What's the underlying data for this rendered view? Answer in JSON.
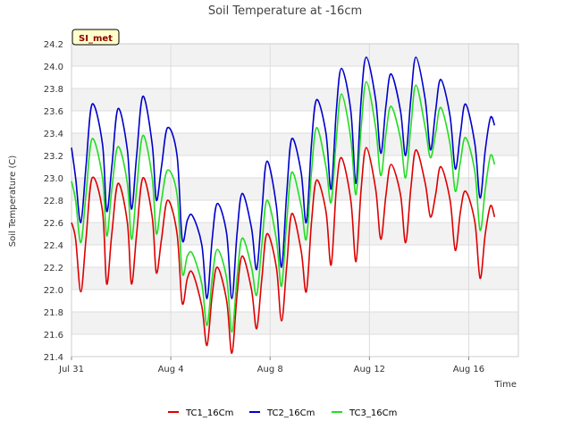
{
  "chart_data": {
    "type": "line",
    "title": "Soil Temperature at -16cm",
    "xlabel": "Time",
    "ylabel": "Soil Temperature (C)",
    "badge": "SI_met",
    "ylim": [
      21.4,
      24.2
    ],
    "xlim": [
      "2023-07-31",
      "2023-08-18"
    ],
    "x_ticks": [
      {
        "date": "2023-07-31",
        "label": "Jul 31"
      },
      {
        "date": "2023-08-04",
        "label": "Aug 4"
      },
      {
        "date": "2023-08-08",
        "label": "Aug 8"
      },
      {
        "date": "2023-08-12",
        "label": "Aug 12"
      },
      {
        "date": "2023-08-16",
        "label": "Aug 16"
      }
    ],
    "y_ticks": [
      "21.4",
      "21.6",
      "21.8",
      "22.0",
      "22.2",
      "22.4",
      "22.6",
      "22.8",
      "23.0",
      "23.2",
      "23.4",
      "23.6",
      "23.8",
      "24.0",
      "24.2"
    ],
    "grid": true,
    "legend_position": "bottom",
    "series": [
      {
        "name": "TC1_16Cm",
        "color": "#dd0000",
        "points": [
          [
            "2023-07-31 00:00",
            22.6
          ],
          [
            "2023-07-31 04:00",
            22.45
          ],
          [
            "2023-07-31 09:00",
            21.98
          ],
          [
            "2023-07-31 14:00",
            22.45
          ],
          [
            "2023-07-31 20:00",
            23.0
          ],
          [
            "2023-08-01 06:00",
            22.7
          ],
          [
            "2023-08-01 10:00",
            22.05
          ],
          [
            "2023-08-01 15:00",
            22.5
          ],
          [
            "2023-08-01 21:00",
            22.95
          ],
          [
            "2023-08-02 06:00",
            22.6
          ],
          [
            "2023-08-02 10:00",
            22.05
          ],
          [
            "2023-08-02 15:00",
            22.5
          ],
          [
            "2023-08-02 21:00",
            23.0
          ],
          [
            "2023-08-03 06:00",
            22.65
          ],
          [
            "2023-08-03 10:00",
            22.15
          ],
          [
            "2023-08-03 15:00",
            22.45
          ],
          [
            "2023-08-03 21:00",
            22.8
          ],
          [
            "2023-08-04 06:00",
            22.5
          ],
          [
            "2023-08-04 11:00",
            21.88
          ],
          [
            "2023-08-04 16:00",
            22.1
          ],
          [
            "2023-08-04 21:00",
            22.15
          ],
          [
            "2023-08-05 06:00",
            21.85
          ],
          [
            "2023-08-05 11:00",
            21.5
          ],
          [
            "2023-08-05 16:00",
            21.95
          ],
          [
            "2023-08-05 21:00",
            22.2
          ],
          [
            "2023-08-06 06:00",
            21.9
          ],
          [
            "2023-08-06 11:00",
            21.43
          ],
          [
            "2023-08-06 16:00",
            21.95
          ],
          [
            "2023-08-06 21:00",
            22.3
          ],
          [
            "2023-08-07 06:00",
            22.0
          ],
          [
            "2023-08-07 11:00",
            21.65
          ],
          [
            "2023-08-07 16:00",
            22.1
          ],
          [
            "2023-08-07 21:00",
            22.5
          ],
          [
            "2023-08-08 06:00",
            22.2
          ],
          [
            "2023-08-08 11:00",
            21.72
          ],
          [
            "2023-08-08 16:00",
            22.2
          ],
          [
            "2023-08-08 21:00",
            22.68
          ],
          [
            "2023-08-09 06:00",
            22.35
          ],
          [
            "2023-08-09 11:00",
            21.98
          ],
          [
            "2023-08-09 16:00",
            22.6
          ],
          [
            "2023-08-09 21:00",
            22.98
          ],
          [
            "2023-08-10 06:00",
            22.7
          ],
          [
            "2023-08-10 11:00",
            22.22
          ],
          [
            "2023-08-10 16:00",
            22.9
          ],
          [
            "2023-08-10 21:00",
            23.18
          ],
          [
            "2023-08-11 06:00",
            22.8
          ],
          [
            "2023-08-11 11:00",
            22.25
          ],
          [
            "2023-08-11 16:00",
            22.9
          ],
          [
            "2023-08-11 21:00",
            23.27
          ],
          [
            "2023-08-12 06:00",
            22.9
          ],
          [
            "2023-08-12 11:00",
            22.45
          ],
          [
            "2023-08-12 16:00",
            22.85
          ],
          [
            "2023-08-12 21:00",
            23.12
          ],
          [
            "2023-08-13 06:00",
            22.85
          ],
          [
            "2023-08-13 11:00",
            22.42
          ],
          [
            "2023-08-13 16:00",
            22.9
          ],
          [
            "2023-08-13 21:00",
            23.25
          ],
          [
            "2023-08-14 06:00",
            22.95
          ],
          [
            "2023-08-14 11:00",
            22.65
          ],
          [
            "2023-08-14 16:00",
            22.85
          ],
          [
            "2023-08-14 21:00",
            23.1
          ],
          [
            "2023-08-15 06:00",
            22.8
          ],
          [
            "2023-08-15 11:00",
            22.35
          ],
          [
            "2023-08-15 16:00",
            22.7
          ],
          [
            "2023-08-15 21:00",
            22.88
          ],
          [
            "2023-08-16 06:00",
            22.6
          ],
          [
            "2023-08-16 11:00",
            22.1
          ],
          [
            "2023-08-16 16:00",
            22.5
          ],
          [
            "2023-08-16 21:00",
            22.75
          ],
          [
            "2023-08-17 01:00",
            22.65
          ]
        ]
      },
      {
        "name": "TC2_16Cm",
        "color": "#0000cc",
        "points": [
          [
            "2023-07-31 00:00",
            23.27
          ],
          [
            "2023-07-31 04:00",
            23.0
          ],
          [
            "2023-07-31 09:00",
            22.6
          ],
          [
            "2023-07-31 14:00",
            23.1
          ],
          [
            "2023-07-31 20:00",
            23.66
          ],
          [
            "2023-08-01 06:00",
            23.3
          ],
          [
            "2023-08-01 10:00",
            22.7
          ],
          [
            "2023-08-01 15:00",
            23.1
          ],
          [
            "2023-08-01 21:00",
            23.62
          ],
          [
            "2023-08-02 06:00",
            23.25
          ],
          [
            "2023-08-02 10:00",
            22.72
          ],
          [
            "2023-08-02 15:00",
            23.2
          ],
          [
            "2023-08-02 21:00",
            23.73
          ],
          [
            "2023-08-03 06:00",
            23.3
          ],
          [
            "2023-08-03 10:00",
            22.8
          ],
          [
            "2023-08-03 15:00",
            23.1
          ],
          [
            "2023-08-03 21:00",
            23.45
          ],
          [
            "2023-08-04 06:00",
            23.2
          ],
          [
            "2023-08-04 11:00",
            22.45
          ],
          [
            "2023-08-04 16:00",
            22.62
          ],
          [
            "2023-08-04 21:00",
            22.66
          ],
          [
            "2023-08-05 06:00",
            22.4
          ],
          [
            "2023-08-05 11:00",
            21.92
          ],
          [
            "2023-08-05 16:00",
            22.45
          ],
          [
            "2023-08-05 21:00",
            22.77
          ],
          [
            "2023-08-06 06:00",
            22.5
          ],
          [
            "2023-08-06 11:00",
            21.92
          ],
          [
            "2023-08-06 16:00",
            22.5
          ],
          [
            "2023-08-06 21:00",
            22.86
          ],
          [
            "2023-08-07 06:00",
            22.55
          ],
          [
            "2023-08-07 11:00",
            22.18
          ],
          [
            "2023-08-07 16:00",
            22.7
          ],
          [
            "2023-08-07 21:00",
            23.15
          ],
          [
            "2023-08-08 06:00",
            22.75
          ],
          [
            "2023-08-08 11:00",
            22.2
          ],
          [
            "2023-08-08 16:00",
            22.85
          ],
          [
            "2023-08-08 21:00",
            23.35
          ],
          [
            "2023-08-09 06:00",
            23.05
          ],
          [
            "2023-08-09 11:00",
            22.6
          ],
          [
            "2023-08-09 16:00",
            23.3
          ],
          [
            "2023-08-09 21:00",
            23.7
          ],
          [
            "2023-08-10 06:00",
            23.4
          ],
          [
            "2023-08-10 11:00",
            22.9
          ],
          [
            "2023-08-10 16:00",
            23.6
          ],
          [
            "2023-08-10 21:00",
            23.98
          ],
          [
            "2023-08-11 06:00",
            23.6
          ],
          [
            "2023-08-11 11:00",
            22.95
          ],
          [
            "2023-08-11 16:00",
            23.7
          ],
          [
            "2023-08-11 21:00",
            24.08
          ],
          [
            "2023-08-12 06:00",
            23.7
          ],
          [
            "2023-08-12 11:00",
            23.22
          ],
          [
            "2023-08-12 16:00",
            23.65
          ],
          [
            "2023-08-12 21:00",
            23.93
          ],
          [
            "2023-08-13 06:00",
            23.6
          ],
          [
            "2023-08-13 11:00",
            23.2
          ],
          [
            "2023-08-13 16:00",
            23.7
          ],
          [
            "2023-08-13 21:00",
            24.08
          ],
          [
            "2023-08-14 06:00",
            23.7
          ],
          [
            "2023-08-14 11:00",
            23.25
          ],
          [
            "2023-08-14 16:00",
            23.6
          ],
          [
            "2023-08-14 21:00",
            23.88
          ],
          [
            "2023-08-15 06:00",
            23.55
          ],
          [
            "2023-08-15 11:00",
            23.08
          ],
          [
            "2023-08-15 16:00",
            23.4
          ],
          [
            "2023-08-15 21:00",
            23.66
          ],
          [
            "2023-08-16 06:00",
            23.3
          ],
          [
            "2023-08-16 11:00",
            22.82
          ],
          [
            "2023-08-16 16:00",
            23.25
          ],
          [
            "2023-08-16 21:00",
            23.54
          ],
          [
            "2023-08-17 01:00",
            23.47
          ]
        ]
      },
      {
        "name": "TC3_16Cm",
        "color": "#22dd22",
        "points": [
          [
            "2023-07-31 00:00",
            22.97
          ],
          [
            "2023-07-31 04:00",
            22.8
          ],
          [
            "2023-07-31 09:00",
            22.42
          ],
          [
            "2023-07-31 14:00",
            22.85
          ],
          [
            "2023-07-31 20:00",
            23.35
          ],
          [
            "2023-08-01 06:00",
            23.0
          ],
          [
            "2023-08-01 10:00",
            22.48
          ],
          [
            "2023-08-01 15:00",
            22.9
          ],
          [
            "2023-08-01 21:00",
            23.28
          ],
          [
            "2023-08-02 06:00",
            22.95
          ],
          [
            "2023-08-02 10:00",
            22.45
          ],
          [
            "2023-08-02 15:00",
            22.9
          ],
          [
            "2023-08-02 21:00",
            23.38
          ],
          [
            "2023-08-03 06:00",
            23.0
          ],
          [
            "2023-08-03 10:00",
            22.5
          ],
          [
            "2023-08-03 15:00",
            22.8
          ],
          [
            "2023-08-03 21:00",
            23.07
          ],
          [
            "2023-08-04 06:00",
            22.85
          ],
          [
            "2023-08-04 11:00",
            22.15
          ],
          [
            "2023-08-04 16:00",
            22.3
          ],
          [
            "2023-08-04 21:00",
            22.32
          ],
          [
            "2023-08-05 06:00",
            22.05
          ],
          [
            "2023-08-05 11:00",
            21.68
          ],
          [
            "2023-08-05 16:00",
            22.1
          ],
          [
            "2023-08-05 21:00",
            22.36
          ],
          [
            "2023-08-06 06:00",
            22.1
          ],
          [
            "2023-08-06 11:00",
            21.62
          ],
          [
            "2023-08-06 16:00",
            22.1
          ],
          [
            "2023-08-06 21:00",
            22.46
          ],
          [
            "2023-08-07 06:00",
            22.2
          ],
          [
            "2023-08-07 11:00",
            21.95
          ],
          [
            "2023-08-07 16:00",
            22.4
          ],
          [
            "2023-08-07 21:00",
            22.8
          ],
          [
            "2023-08-08 06:00",
            22.45
          ],
          [
            "2023-08-08 11:00",
            22.03
          ],
          [
            "2023-08-08 16:00",
            22.6
          ],
          [
            "2023-08-08 21:00",
            23.05
          ],
          [
            "2023-08-09 06:00",
            22.75
          ],
          [
            "2023-08-09 11:00",
            22.45
          ],
          [
            "2023-08-09 16:00",
            23.05
          ],
          [
            "2023-08-09 21:00",
            23.45
          ],
          [
            "2023-08-10 06:00",
            23.1
          ],
          [
            "2023-08-10 11:00",
            22.78
          ],
          [
            "2023-08-10 16:00",
            23.35
          ],
          [
            "2023-08-10 21:00",
            23.75
          ],
          [
            "2023-08-11 06:00",
            23.35
          ],
          [
            "2023-08-11 11:00",
            22.85
          ],
          [
            "2023-08-11 16:00",
            23.45
          ],
          [
            "2023-08-11 21:00",
            23.86
          ],
          [
            "2023-08-12 06:00",
            23.45
          ],
          [
            "2023-08-12 11:00",
            23.02
          ],
          [
            "2023-08-12 16:00",
            23.4
          ],
          [
            "2023-08-12 21:00",
            23.64
          ],
          [
            "2023-08-13 06:00",
            23.35
          ],
          [
            "2023-08-13 11:00",
            23.0
          ],
          [
            "2023-08-13 16:00",
            23.45
          ],
          [
            "2023-08-13 21:00",
            23.83
          ],
          [
            "2023-08-14 06:00",
            23.45
          ],
          [
            "2023-08-14 11:00",
            23.18
          ],
          [
            "2023-08-14 16:00",
            23.4
          ],
          [
            "2023-08-14 21:00",
            23.63
          ],
          [
            "2023-08-15 06:00",
            23.3
          ],
          [
            "2023-08-15 11:00",
            22.88
          ],
          [
            "2023-08-15 16:00",
            23.15
          ],
          [
            "2023-08-15 21:00",
            23.36
          ],
          [
            "2023-08-16 06:00",
            23.05
          ],
          [
            "2023-08-16 11:00",
            22.53
          ],
          [
            "2023-08-16 16:00",
            22.9
          ],
          [
            "2023-08-16 21:00",
            23.2
          ],
          [
            "2023-08-17 01:00",
            23.12
          ]
        ]
      }
    ]
  }
}
